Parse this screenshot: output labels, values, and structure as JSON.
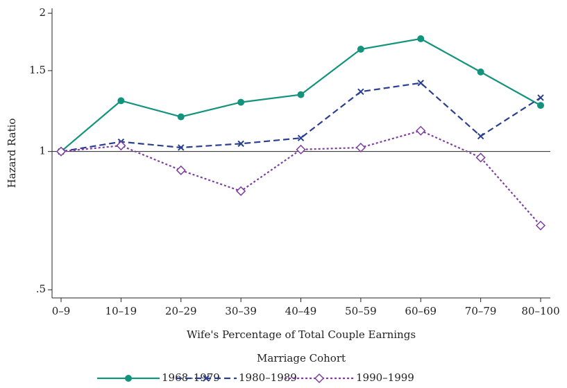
{
  "chart_data": {
    "type": "line",
    "xlabel": "Wife's Percentage of Total Couple Earnings",
    "ylabel": "Hazard Ratio",
    "legend_title": "Marriage Cohort",
    "legend": "bottom",
    "log_y": true,
    "hline": 1,
    "categories": [
      "0–9",
      "10–19",
      "20–29",
      "30–39",
      "40–49",
      "50–59",
      "60–69",
      "70–79",
      "80–100"
    ],
    "series": [
      {
        "name": "1968–1979",
        "color": "#13937b",
        "marker": "circle",
        "dash": "solid",
        "values": [
          1.0,
          1.29,
          1.19,
          1.28,
          1.33,
          1.67,
          1.76,
          1.49,
          1.26
        ]
      },
      {
        "name": "1980–1989",
        "color": "#2b3f8f",
        "marker": "x",
        "dash": "dashed",
        "values": [
          1.0,
          1.05,
          1.02,
          1.04,
          1.07,
          1.35,
          1.41,
          1.08,
          1.31
        ]
      },
      {
        "name": "1990–1999",
        "color": "#7c3fa0",
        "marker": "diamond",
        "dash": "dotted",
        "values": [
          1.0,
          1.03,
          0.91,
          0.82,
          1.01,
          1.02,
          1.11,
          0.97,
          0.69
        ]
      }
    ],
    "ylim": [
      0.48,
      2.05
    ],
    "yticks": [
      {
        "value": 0.5,
        "label": ".5"
      },
      1,
      1.5,
      2
    ]
  }
}
